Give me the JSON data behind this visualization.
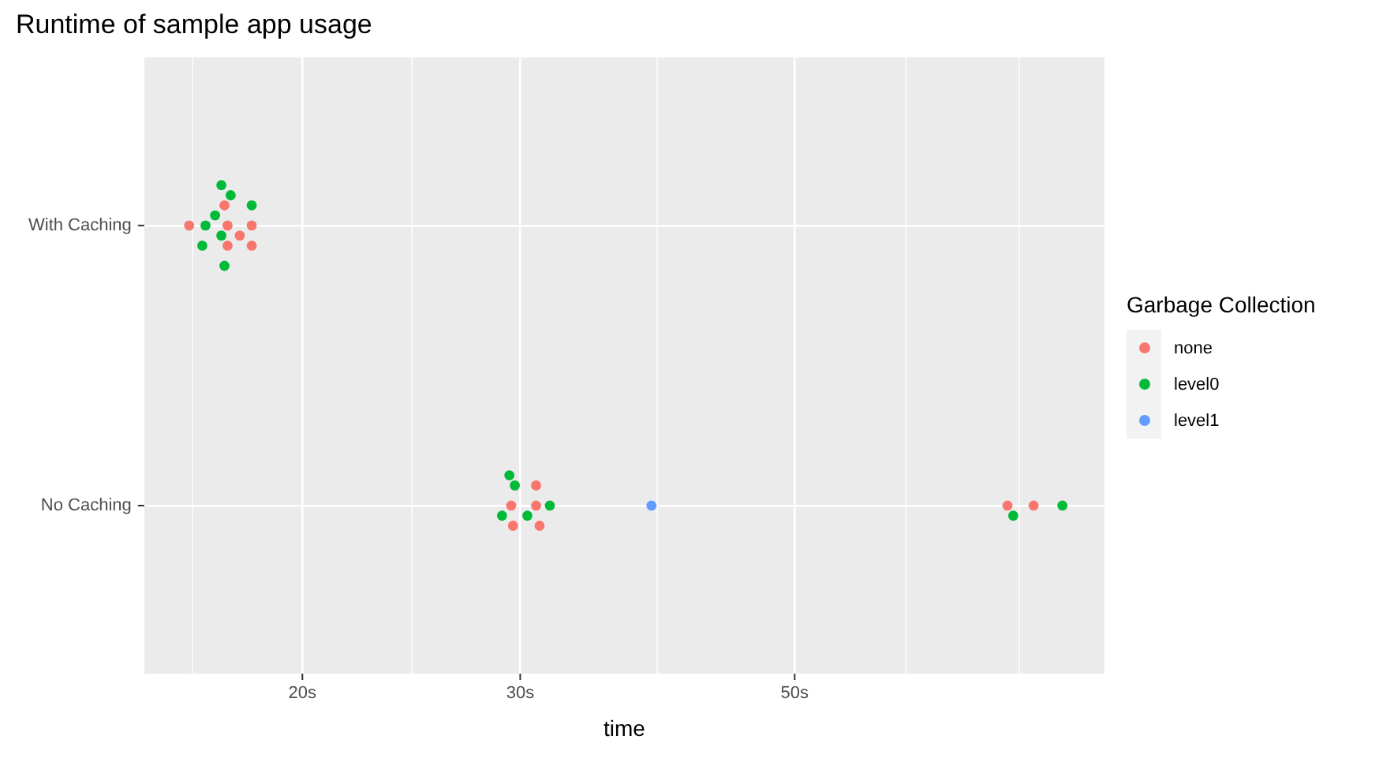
{
  "chart_data": {
    "type": "scatter",
    "title": "Runtime of sample app usage",
    "xlabel": "time",
    "legend_title": "Garbage Collection",
    "legend": "right",
    "grid": true,
    "marker": "circle",
    "log": "x",
    "orientation": "horizontal",
    "categories": [
      "With Caching",
      "No Caching"
    ],
    "xlim": [
      14.9,
      89
    ],
    "xticks": [
      {
        "value": 16.3,
        "label": null
      },
      {
        "value": 20,
        "label": "20s"
      },
      {
        "value": 24.5,
        "label": null
      },
      {
        "value": 30,
        "label": "30s"
      },
      {
        "value": 38.7,
        "label": null
      },
      {
        "value": 50,
        "label": "50s"
      },
      {
        "value": 61.5,
        "label": null
      },
      {
        "value": 75.9,
        "label": null
      }
    ],
    "series": [
      {
        "name": "none",
        "color": "#f8766d",
        "x": [
          "With Caching",
          "With Caching",
          "With Caching",
          "With Caching",
          "With Caching",
          "With Caching",
          "With Caching",
          "No Caching",
          "No Caching",
          "No Caching",
          "No Caching",
          "No Caching",
          "No Caching",
          "No Caching"
        ],
        "values": [
          18.2,
          18.2,
          17.4,
          16.2,
          17.8,
          17.4,
          17.3,
          30.9,
          29.5,
          31.1,
          29.6,
          30.9,
          78.0,
          74.3
        ]
      },
      {
        "name": "level0",
        "color": "#00ba38",
        "x": [
          "With Caching",
          "With Caching",
          "With Caching",
          "With Caching",
          "With Caching",
          "With Caching",
          "With Caching",
          "With Caching",
          "No Caching",
          "No Caching",
          "No Caching",
          "No Caching",
          "No Caching",
          "No Caching",
          "No Caching"
        ],
        "values": [
          17.3,
          17.5,
          16.7,
          17.2,
          18.2,
          16.6,
          17.2,
          17.0,
          29.7,
          29.0,
          30.4,
          31.7,
          29.4,
          82.3,
          75.1
        ]
      },
      {
        "name": "level1",
        "color": "#619cff",
        "x": [
          "No Caching"
        ],
        "values": [
          38.3
        ]
      }
    ]
  }
}
